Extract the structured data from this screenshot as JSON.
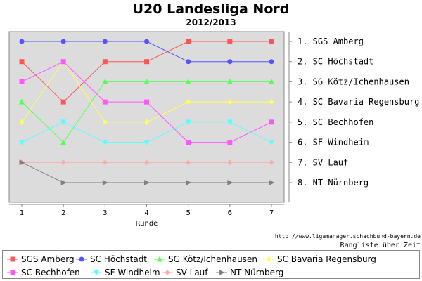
{
  "title": "U20 Landesliga Nord",
  "subtitle": "2012/2013",
  "footer_url": "http://www.ligamanager.schachbund-bayern.de",
  "footer_note": "Rangliste über Zeit",
  "chart_data": {
    "type": "line",
    "xlabel": "Runde",
    "x": [
      1,
      2,
      3,
      4,
      5,
      6,
      7
    ],
    "ylim": [
      1,
      8
    ],
    "y_inverted": true,
    "grid": false,
    "background": "#dcdcdc",
    "right_labels": [
      "1. SGS Amberg",
      "2. SC Höchstadt",
      "3. SG Kötz/Ichenhausen",
      "4. SC Bavaria Regensburg",
      "5. SC Bechhofen",
      "6. SF Windheim",
      "7. SV Lauf",
      "8. NT Nürnberg"
    ],
    "legend_position": "bottom",
    "series": [
      {
        "name": "SGS Amberg",
        "color": "#ff5555",
        "marker": "square",
        "values": [
          2,
          4,
          2,
          2,
          1,
          1,
          1
        ]
      },
      {
        "name": "SC Höchstadt",
        "color": "#5555ff",
        "marker": "circle",
        "values": [
          1,
          1,
          1,
          1,
          2,
          2,
          2
        ]
      },
      {
        "name": "SG Kötz/Ichenhausen",
        "color": "#55ff55",
        "marker": "triangle-up",
        "values": [
          4,
          6,
          3,
          3,
          3,
          3,
          3
        ]
      },
      {
        "name": "SC Bavaria Regensburg",
        "color": "#ffff55",
        "marker": "diamond",
        "values": [
          5,
          2,
          5,
          5,
          4,
          4,
          4
        ]
      },
      {
        "name": "SC Bechhofen",
        "color": "#ff55ff",
        "marker": "square",
        "values": [
          3,
          2,
          4,
          4,
          6,
          6,
          5
        ]
      },
      {
        "name": "SF Windheim",
        "color": "#55ffff",
        "marker": "triangle-down",
        "values": [
          6,
          5,
          6,
          6,
          5,
          5,
          6
        ]
      },
      {
        "name": "SV Lauf",
        "color": "#ffaaaa",
        "marker": "diamond",
        "values": [
          7,
          7,
          7,
          7,
          7,
          7,
          7
        ]
      },
      {
        "name": "NT Nürnberg",
        "color": "#808080",
        "marker": "triangle-right",
        "values": [
          7,
          8,
          8,
          8,
          8,
          8,
          8
        ]
      }
    ]
  }
}
